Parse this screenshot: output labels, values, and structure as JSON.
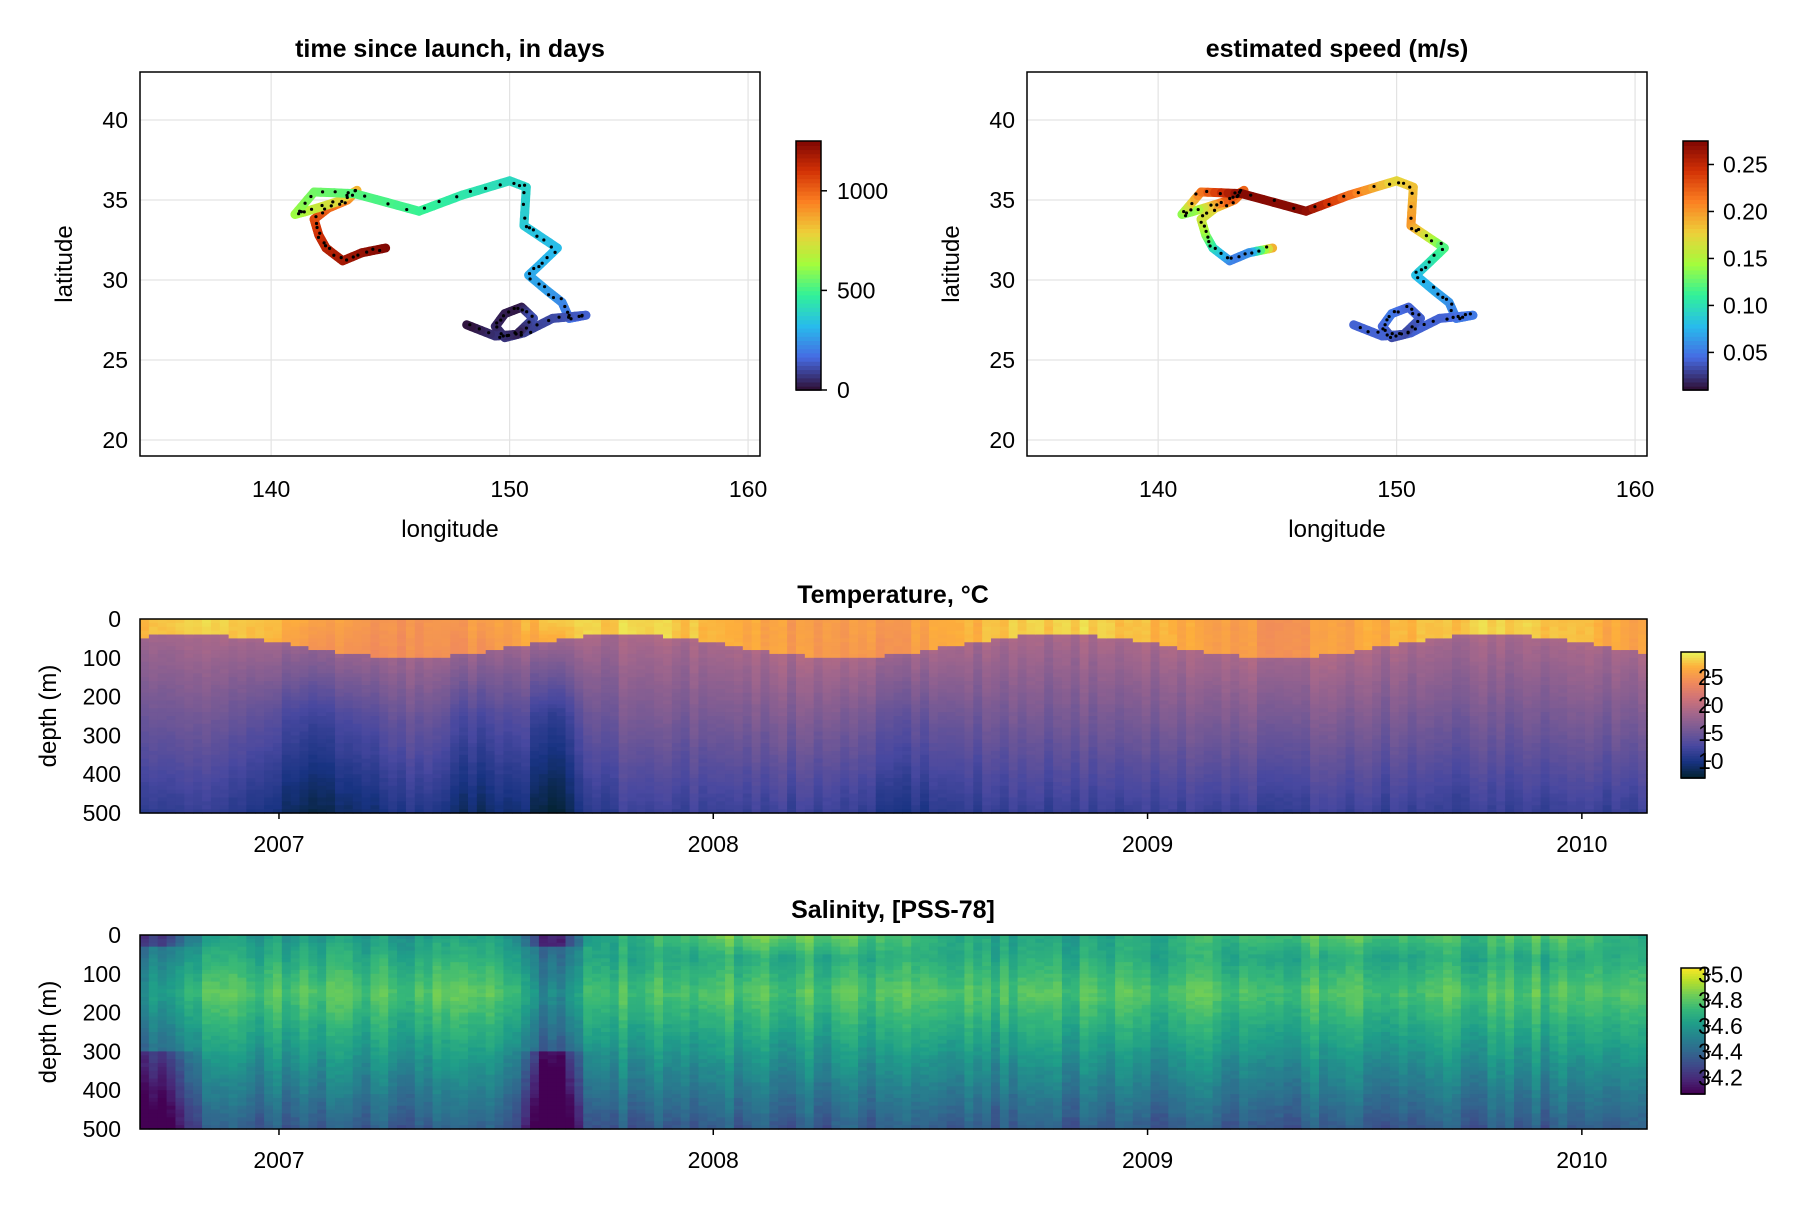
{
  "chart_data": [
    {
      "type": "line",
      "title": "time since launch, in days",
      "xlabel": "longitude",
      "ylabel": "latitude",
      "xlim": [
        134.5,
        160.5
      ],
      "ylim": [
        19,
        43
      ],
      "xticks": [
        "140",
        "150",
        "160"
      ],
      "yticks": [
        "20",
        "25",
        "30",
        "35",
        "40"
      ],
      "color_variable": "days since launch",
      "colorbar": {
        "range": [
          0,
          1250
        ],
        "ticks": [
          "0",
          "500",
          "1000"
        ],
        "tick_values": [
          0,
          500,
          1000
        ],
        "colormap": "turbo"
      },
      "track": {
        "lon": [
          144.8,
          143.8,
          143.0,
          142.3,
          142.0,
          141.8,
          142.4,
          143.2,
          143.6,
          142.8,
          141.5,
          141.0,
          141.8,
          143.5,
          146.2,
          148.0,
          150.0,
          150.7,
          150.6,
          151.0,
          152.0,
          151.3,
          150.8,
          151.6,
          152.2,
          152.5,
          153.2,
          151.8,
          150.6,
          149.8,
          149.4,
          149.8,
          150.5,
          151.0,
          150.3,
          149.4,
          148.2
        ],
        "lat": [
          32.0,
          31.7,
          31.2,
          32.0,
          32.8,
          33.8,
          34.5,
          35.0,
          35.6,
          34.9,
          34.3,
          34.1,
          35.5,
          35.4,
          34.3,
          35.3,
          36.2,
          35.8,
          33.4,
          33.0,
          32.0,
          31.0,
          30.3,
          29.3,
          28.6,
          27.6,
          27.8,
          27.6,
          26.7,
          26.4,
          27.1,
          27.9,
          28.3,
          27.6,
          26.6,
          26.5,
          27.2
        ],
        "days": [
          1240,
          1210,
          1180,
          1150,
          1110,
          1060,
          1000,
          920,
          840,
          760,
          680,
          620,
          560,
          520,
          480,
          440,
          400,
          380,
          360,
          340,
          320,
          300,
          280,
          260,
          220,
          180,
          140,
          100,
          80,
          60,
          40,
          20,
          10,
          120,
          20,
          60,
          0
        ]
      }
    },
    {
      "type": "line",
      "title": "estimated speed (m/s)",
      "xlabel": "longitude",
      "ylabel": "latitude",
      "xlim": [
        134.5,
        160.5
      ],
      "ylim": [
        19,
        43
      ],
      "xticks": [
        "140",
        "150",
        "160"
      ],
      "yticks": [
        "20",
        "25",
        "30",
        "35",
        "40"
      ],
      "color_variable": "speed (m/s)",
      "colorbar": {
        "range": [
          0.01,
          0.275
        ],
        "ticks": [
          "0.05",
          "0.10",
          "0.15",
          "0.20",
          "0.25"
        ],
        "tick_values": [
          0.05,
          0.1,
          0.15,
          0.2,
          0.25
        ],
        "colormap": "turbo"
      },
      "track": {
        "lon": [
          144.8,
          143.8,
          143.0,
          142.3,
          142.0,
          141.8,
          142.4,
          143.2,
          143.6,
          142.8,
          141.5,
          141.0,
          141.8,
          143.5,
          146.2,
          148.0,
          150.0,
          150.7,
          150.6,
          151.0,
          152.0,
          151.3,
          150.8,
          151.6,
          152.2,
          152.5,
          153.2,
          151.8,
          150.6,
          149.8,
          149.4,
          149.8,
          150.5,
          151.0,
          150.3,
          149.4,
          148.2
        ],
        "lat": [
          32.0,
          31.7,
          31.2,
          32.0,
          32.8,
          33.8,
          34.5,
          35.0,
          35.6,
          34.9,
          34.3,
          34.1,
          35.5,
          35.4,
          34.3,
          35.3,
          36.2,
          35.8,
          33.4,
          33.0,
          32.0,
          31.0,
          30.3,
          29.3,
          28.6,
          27.6,
          27.8,
          27.6,
          26.7,
          26.4,
          27.1,
          27.9,
          28.3,
          27.6,
          26.6,
          26.5,
          27.2
        ],
        "speed": [
          0.2,
          0.06,
          0.05,
          0.09,
          0.13,
          0.16,
          0.17,
          0.21,
          0.22,
          0.23,
          0.14,
          0.13,
          0.21,
          0.27,
          0.27,
          0.22,
          0.17,
          0.18,
          0.2,
          0.18,
          0.12,
          0.1,
          0.08,
          0.07,
          0.06,
          0.05,
          0.05,
          0.04,
          0.04,
          0.03,
          0.04,
          0.05,
          0.04,
          0.04,
          0.03,
          0.04,
          0.04
        ]
      }
    },
    {
      "type": "heatmap",
      "title": "Temperature, °C",
      "ylabel": "depth (m)",
      "yticks": [
        "0",
        "100",
        "200",
        "300",
        "400",
        "500"
      ],
      "ylim": [
        500,
        0
      ],
      "xlim": [
        2006.68,
        2010.15
      ],
      "xticks": [
        "2007",
        "2008",
        "2009",
        "2010"
      ],
      "tick_years": [
        2007,
        2008,
        2009,
        2010
      ],
      "colormap": "thermal",
      "colorbar": {
        "range": [
          7,
          29.5
        ],
        "ticks": [
          "10",
          "15",
          "20",
          "25"
        ],
        "tick_values": [
          10,
          15,
          20,
          25
        ]
      },
      "profile": {
        "surface": 26.5,
        "mixed_layer_m": 70,
        "mid": 17.5,
        "deep": 11.5
      },
      "cold_events": [
        {
          "t": 2007.1,
          "width": 0.12,
          "strength": 3.5
        },
        {
          "t": 2007.45,
          "width": 0.06,
          "strength": 3
        },
        {
          "t": 2007.63,
          "width": 0.05,
          "strength": 5
        },
        {
          "t": 2008.45,
          "width": 0.1,
          "strength": 1.5
        }
      ]
    },
    {
      "type": "heatmap",
      "title": "Salinity, [PSS-78]",
      "ylabel": "depth (m)",
      "yticks": [
        "0",
        "100",
        "200",
        "300",
        "400",
        "500"
      ],
      "ylim": [
        500,
        0
      ],
      "xlim": [
        2006.68,
        2010.15
      ],
      "xticks": [
        "2007",
        "2008",
        "2009",
        "2010"
      ],
      "tick_years": [
        2007,
        2008,
        2009,
        2010
      ],
      "colormap": "viridis",
      "colorbar": {
        "range": [
          34.07,
          35.05
        ],
        "ticks": [
          "34.2",
          "34.4",
          "34.6",
          "34.8",
          "35.0"
        ],
        "tick_values": [
          34.2,
          34.4,
          34.6,
          34.8,
          35.0
        ]
      },
      "profile": {
        "surface": 34.6,
        "core_m": 150,
        "core": 34.78,
        "deep": 34.35
      },
      "fresh_events": [
        {
          "t": 2006.72,
          "width": 0.05,
          "strength": 0.4
        },
        {
          "t": 2007.63,
          "width": 0.04,
          "strength": 0.5
        }
      ],
      "salty_surface_events": [
        {
          "t": 2008.15,
          "width": 0.25,
          "strength": 0.25
        },
        {
          "t": 2009.45,
          "width": 0.3,
          "strength": 0.2
        },
        {
          "t": 2009.95,
          "width": 0.1,
          "strength": 0.15
        }
      ]
    }
  ]
}
